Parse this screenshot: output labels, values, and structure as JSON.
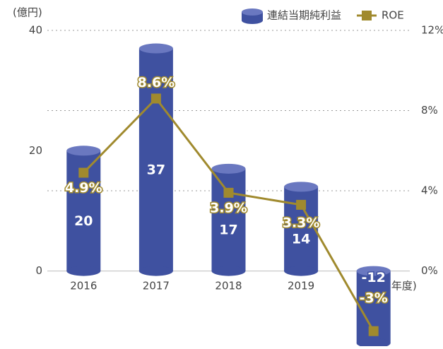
{
  "chart_data": {
    "type": "bar",
    "y_label": "(億円)",
    "x_label": "(年度)",
    "categories": [
      "2016",
      "2017",
      "2018",
      "2019",
      ""
    ],
    "series": [
      {
        "name": "連結当期純利益",
        "color": "#3f51a0",
        "values": [
          20,
          37,
          17,
          14,
          -12
        ]
      },
      {
        "name": "ROE",
        "type": "line",
        "axis": "y2",
        "color": "#a08a2e",
        "values": [
          4.9,
          8.6,
          3.9,
          3.3,
          -3
        ],
        "value_labels": [
          "4.9%",
          "8.6%",
          "3.9%",
          "3.3%",
          "-3%"
        ]
      }
    ],
    "ylim": [
      -12.5,
      40
    ],
    "yticks": [
      0,
      20,
      40
    ],
    "y2lim": [
      -3.75,
      12
    ],
    "y2ticks": [
      {
        "value": 0,
        "label": "0%"
      },
      {
        "value": 4,
        "label": "4%"
      },
      {
        "value": 8,
        "label": "8%"
      },
      {
        "value": 12,
        "label": "12%"
      }
    ],
    "grid": true
  }
}
